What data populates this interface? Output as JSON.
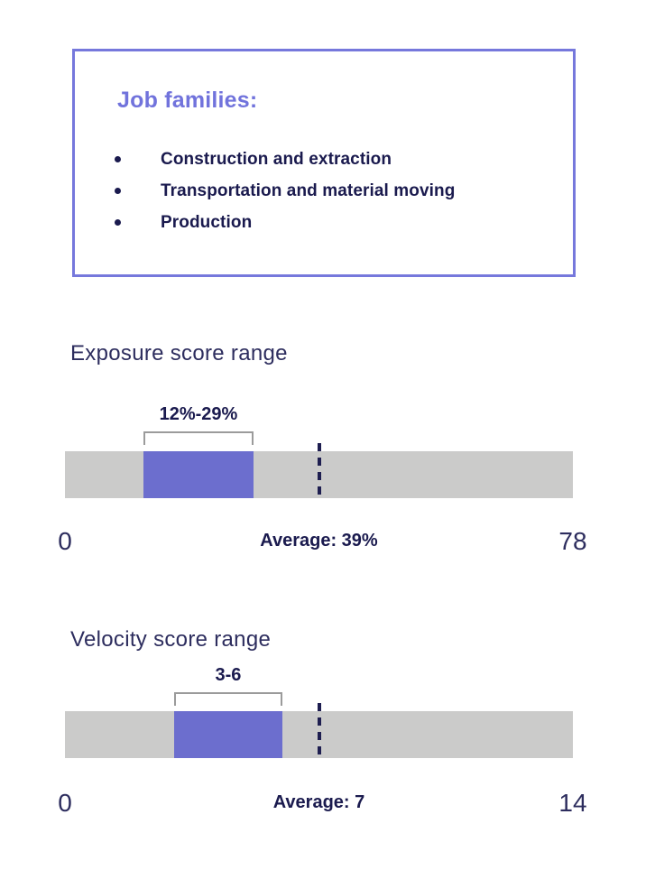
{
  "colors": {
    "background": "#FFFFFF",
    "accent_purple": "#7173DC",
    "box_border": "#7678DC",
    "bar_fill": "#6C6ECE",
    "bar_track": "#CBCBCA",
    "navy_text": "#1A1A4E",
    "title_text": "#2D2D5E",
    "bracket": "#9B9B9B",
    "dash": "#1E1E50"
  },
  "job_families": {
    "title": "Job families:",
    "items": [
      "Construction and extraction",
      "Transportation and material moving",
      "Production"
    ]
  },
  "chart_data": [
    {
      "type": "bar",
      "subtype": "range_bar",
      "orientation": "horizontal",
      "title": "Exposure score range",
      "range_label": "12%-29%",
      "range_start": 12,
      "range_end": 29,
      "average": 39,
      "average_label": "Average: 39%",
      "axis_min": 0,
      "axis_max": 78,
      "axis_min_label": "0",
      "axis_max_label": "78",
      "grid": false,
      "legend": false
    },
    {
      "type": "bar",
      "subtype": "range_bar",
      "orientation": "horizontal",
      "title": "Velocity score range",
      "range_label": "3-6",
      "range_start": 3,
      "range_end": 6,
      "average": 7,
      "average_label": "Average: 7",
      "axis_min": 0,
      "axis_max": 14,
      "axis_min_label": "0",
      "axis_max_label": "14",
      "grid": false,
      "legend": false
    }
  ]
}
